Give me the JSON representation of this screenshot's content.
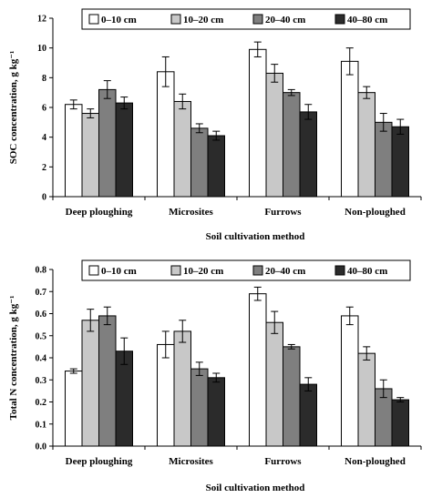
{
  "chart_data": [
    {
      "type": "bar",
      "title": "",
      "xlabel": "Soil cultivation method",
      "ylabel": "SOC concentration, g kg⁻¹",
      "ylim": [
        0,
        12
      ],
      "yticks": [
        "0",
        "2",
        "4",
        "6",
        "8",
        "10",
        "12"
      ],
      "grid": false,
      "legend_position": "top",
      "categories": [
        "Deep ploughing",
        "Microsites",
        "Furrows",
        "Non-ploughed"
      ],
      "series": [
        {
          "name": "0–10 cm",
          "color": "#ffffff",
          "values": [
            6.2,
            8.4,
            9.9,
            9.1
          ],
          "errors": [
            0.3,
            1.0,
            0.5,
            0.9
          ]
        },
        {
          "name": "10–20 cm",
          "color": "#c8c8c8",
          "values": [
            5.6,
            6.4,
            8.3,
            7.0
          ],
          "errors": [
            0.3,
            0.5,
            0.6,
            0.4
          ]
        },
        {
          "name": "20–40 cm",
          "color": "#7f7f7f",
          "values": [
            7.2,
            4.6,
            7.0,
            5.0
          ],
          "errors": [
            0.6,
            0.3,
            0.2,
            0.6
          ]
        },
        {
          "name": "40–80 cm",
          "color": "#2b2b2b",
          "values": [
            6.3,
            4.1,
            5.7,
            4.7
          ],
          "errors": [
            0.4,
            0.3,
            0.5,
            0.5
          ]
        }
      ]
    },
    {
      "type": "bar",
      "title": "",
      "xlabel": "Soil cultivation method",
      "ylabel": "Total N concentration, g kg⁻¹",
      "ylim": [
        0,
        0.8
      ],
      "yticks": [
        "0.0",
        "0.1",
        "0.2",
        "0.3",
        "0.4",
        "0.5",
        "0.6",
        "0.7",
        "0.8"
      ],
      "grid": false,
      "legend_position": "top",
      "categories": [
        "Deep ploughing",
        "Microsites",
        "Furrows",
        "Non-ploughed"
      ],
      "series": [
        {
          "name": "0–10 cm",
          "color": "#ffffff",
          "values": [
            0.34,
            0.46,
            0.69,
            0.59
          ],
          "errors": [
            0.01,
            0.06,
            0.03,
            0.04
          ]
        },
        {
          "name": "10–20 cm",
          "color": "#c8c8c8",
          "values": [
            0.57,
            0.52,
            0.56,
            0.42
          ],
          "errors": [
            0.05,
            0.05,
            0.05,
            0.03
          ]
        },
        {
          "name": "20–40 cm",
          "color": "#7f7f7f",
          "values": [
            0.59,
            0.35,
            0.45,
            0.26
          ],
          "errors": [
            0.04,
            0.03,
            0.01,
            0.04
          ]
        },
        {
          "name": "40–80 cm",
          "color": "#2b2b2b",
          "values": [
            0.43,
            0.31,
            0.28,
            0.21
          ],
          "errors": [
            0.06,
            0.02,
            0.03,
            0.01
          ]
        }
      ]
    }
  ]
}
